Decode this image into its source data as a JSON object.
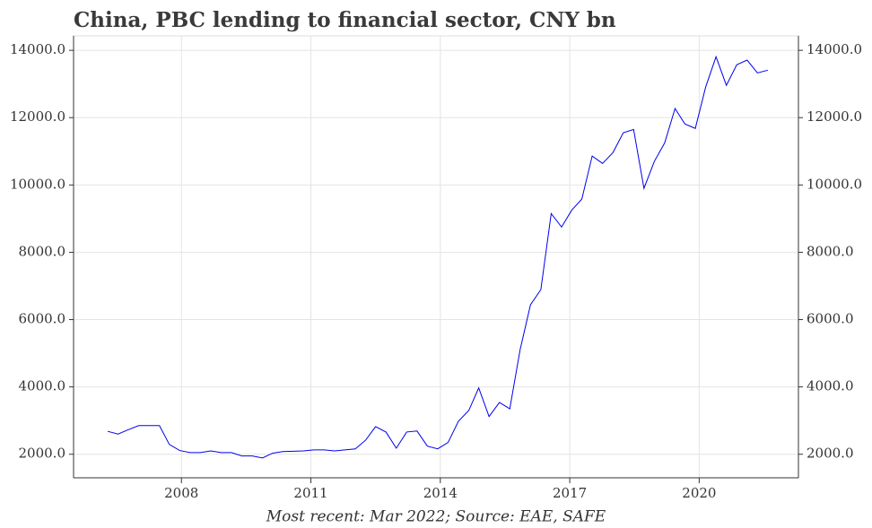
{
  "chart_data": {
    "type": "line",
    "title": "China, PBC lending to financial sector, CNY bn",
    "footnote": "Most recent: Mar 2022; Source: EAE, SAFE",
    "x": [
      2006.29,
      2006.53,
      2006.77,
      2007.01,
      2007.25,
      2007.49,
      2007.72,
      2007.96,
      2008.2,
      2008.44,
      2008.68,
      2008.92,
      2009.16,
      2009.4,
      2009.64,
      2009.88,
      2010.11,
      2010.35,
      2010.59,
      2010.83,
      2011.07,
      2011.31,
      2011.55,
      2011.79,
      2012.03,
      2012.27,
      2012.5,
      2012.74,
      2012.98,
      2013.22,
      2013.46,
      2013.7,
      2013.94,
      2014.18,
      2014.42,
      2014.66,
      2014.89,
      2015.13,
      2015.37,
      2015.61,
      2015.85,
      2016.09,
      2016.33,
      2016.57,
      2016.81,
      2017.05,
      2017.28,
      2017.52,
      2017.76,
      2018.0,
      2018.24,
      2018.48,
      2018.72,
      2018.96,
      2019.2,
      2019.44,
      2019.67,
      2019.91,
      2020.15,
      2020.39,
      2020.63,
      2020.87,
      2021.11,
      2021.35,
      2021.59
    ],
    "series": [
      {
        "name": "PBC lending to financial sector",
        "color": "#0000ee",
        "values": [
          2680,
          2600,
          2730,
          2850,
          2850,
          2850,
          2290,
          2110,
          2050,
          2050,
          2100,
          2050,
          2050,
          1950,
          1950,
          1890,
          2030,
          2080,
          2090,
          2100,
          2130,
          2130,
          2100,
          2130,
          2160,
          2420,
          2820,
          2660,
          2180,
          2660,
          2690,
          2240,
          2160,
          2350,
          2980,
          3300,
          3970,
          3120,
          3540,
          3350,
          5110,
          6440,
          6890,
          9150,
          8750,
          9260,
          9580,
          10860,
          10640,
          10960,
          11550,
          11650,
          9900,
          10700,
          11250,
          12270,
          11810,
          11680,
          12910,
          13810,
          12960,
          13570,
          13710,
          13330,
          13410
        ]
      }
    ],
    "xlim": [
      2005.5,
      2022.3
    ],
    "xticks": [
      2008,
      2011,
      2014,
      2017,
      2020
    ],
    "ylim": [
      1300,
      14430
    ],
    "yticks": [
      {
        "value": 2000,
        "label": "2000.0"
      },
      {
        "value": 4000,
        "label": "4000.0"
      },
      {
        "value": 6000,
        "label": "6000.0"
      },
      {
        "value": 8000,
        "label": "8000.0"
      },
      {
        "value": 10000,
        "label": "10000.0"
      },
      {
        "value": 12000,
        "label": "12000.0"
      },
      {
        "value": 14000,
        "label": "14000.0"
      }
    ],
    "grid": true
  }
}
